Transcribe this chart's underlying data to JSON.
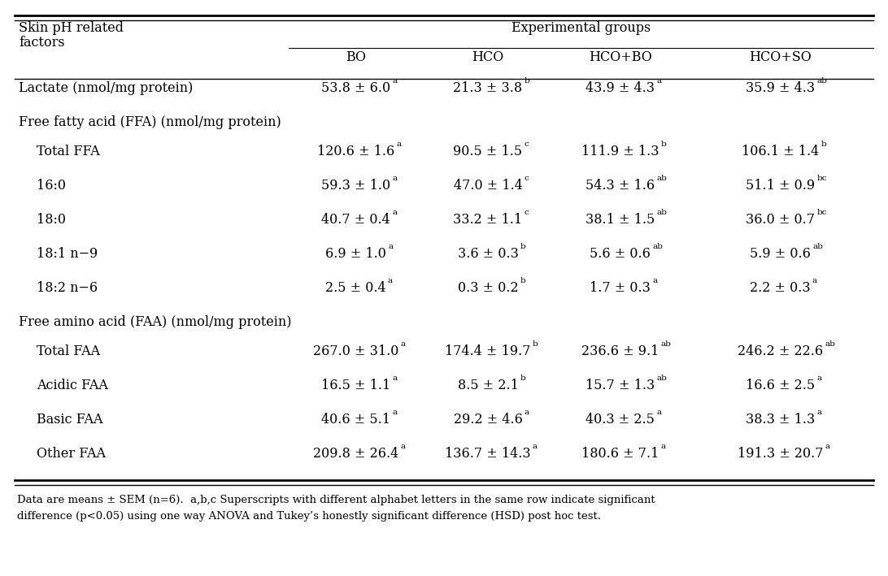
{
  "col_headers": [
    "BO",
    "HCO",
    "HCO+BO",
    "HCO+SO"
  ],
  "rows": [
    {
      "label": "Lactate (nmol/mg protein)",
      "indent": 0,
      "is_section": false,
      "values": [
        {
          "text": "53.8 ± 6.0",
          "sup": "a"
        },
        {
          "text": "21.3 ± 3.8",
          "sup": "b"
        },
        {
          "text": "43.9 ± 4.3",
          "sup": "a"
        },
        {
          "text": "35.9 ± 4.3",
          "sup": "ab"
        }
      ]
    },
    {
      "label": "Free fatty acid (FFA) (nmol/mg protein)",
      "indent": 0,
      "is_section": true,
      "values": []
    },
    {
      "label": "Total FFA",
      "indent": 1,
      "is_section": false,
      "values": [
        {
          "text": "120.6 ± 1.6",
          "sup": "a"
        },
        {
          "text": "90.5 ± 1.5",
          "sup": "c"
        },
        {
          "text": "111.9 ± 1.3",
          "sup": "b"
        },
        {
          "text": "106.1 ± 1.4",
          "sup": "b"
        }
      ]
    },
    {
      "label": "16:0",
      "indent": 1,
      "is_section": false,
      "values": [
        {
          "text": "59.3 ± 1.0",
          "sup": "a"
        },
        {
          "text": "47.0 ± 1.4",
          "sup": "c"
        },
        {
          "text": "54.3 ± 1.6",
          "sup": "ab"
        },
        {
          "text": "51.1 ± 0.9",
          "sup": "bc"
        }
      ]
    },
    {
      "label": "18:0",
      "indent": 1,
      "is_section": false,
      "values": [
        {
          "text": "40.7 ± 0.4",
          "sup": "a"
        },
        {
          "text": "33.2 ± 1.1",
          "sup": "c"
        },
        {
          "text": "38.1 ± 1.5",
          "sup": "ab"
        },
        {
          "text": "36.0 ± 0.7",
          "sup": "bc"
        }
      ]
    },
    {
      "label": "18:1 n−9",
      "indent": 1,
      "is_section": false,
      "values": [
        {
          "text": "6.9 ± 1.0",
          "sup": "a"
        },
        {
          "text": "3.6 ± 0.3",
          "sup": "b"
        },
        {
          "text": "5.6 ± 0.6",
          "sup": "ab"
        },
        {
          "text": "5.9 ± 0.6",
          "sup": "ab"
        }
      ]
    },
    {
      "label": "18:2 n−6",
      "indent": 1,
      "is_section": false,
      "values": [
        {
          "text": "2.5 ± 0.4",
          "sup": "a"
        },
        {
          "text": "0.3 ± 0.2",
          "sup": "b"
        },
        {
          "text": "1.7 ± 0.3",
          "sup": "a"
        },
        {
          "text": "2.2 ± 0.3",
          "sup": "a"
        }
      ]
    },
    {
      "label": "Free amino acid (FAA) (nmol/mg protein)",
      "indent": 0,
      "is_section": true,
      "values": []
    },
    {
      "label": "Total FAA",
      "indent": 1,
      "is_section": false,
      "values": [
        {
          "text": "267.0 ± 31.0",
          "sup": "a"
        },
        {
          "text": "174.4 ± 19.7",
          "sup": "b"
        },
        {
          "text": "236.6 ± 9.1",
          "sup": "ab"
        },
        {
          "text": "246.2 ± 22.6",
          "sup": "ab"
        }
      ]
    },
    {
      "label": "Acidic FAA",
      "indent": 1,
      "is_section": false,
      "values": [
        {
          "text": "16.5 ± 1.1",
          "sup": "a"
        },
        {
          "text": "8.5 ± 2.1",
          "sup": "b"
        },
        {
          "text": "15.7 ± 1.3",
          "sup": "ab"
        },
        {
          "text": "16.6 ± 2.5",
          "sup": "a"
        }
      ]
    },
    {
      "label": "Basic FAA",
      "indent": 1,
      "is_section": false,
      "values": [
        {
          "text": "40.6 ± 5.1",
          "sup": "a"
        },
        {
          "text": "29.2 ± 4.6",
          "sup": "a"
        },
        {
          "text": "40.3 ± 2.5",
          "sup": "a"
        },
        {
          "text": "38.3 ± 1.3",
          "sup": "a"
        }
      ]
    },
    {
      "label": "Other FAA",
      "indent": 1,
      "is_section": false,
      "values": [
        {
          "text": "209.8 ± 26.4",
          "sup": "a"
        },
        {
          "text": "136.7 ± 14.3",
          "sup": "a"
        },
        {
          "text": "180.6 ± 7.1",
          "sup": "a"
        },
        {
          "text": "191.3 ± 20.7",
          "sup": "a"
        }
      ]
    }
  ],
  "footnote_line1": "Data are means ± SEM (n=6).  a,b,c Superscripts with different alphabet letters in the same row indicate significant",
  "footnote_line2": "difference (p<0.05) using one way ANOVA and Tukey’s honestly significant difference (HSD) post hoc test.",
  "background_color": "#ffffff",
  "text_color": "#000000",
  "font_size": 11.5,
  "sup_font_size": 7.5,
  "header_font_size": 11.5
}
